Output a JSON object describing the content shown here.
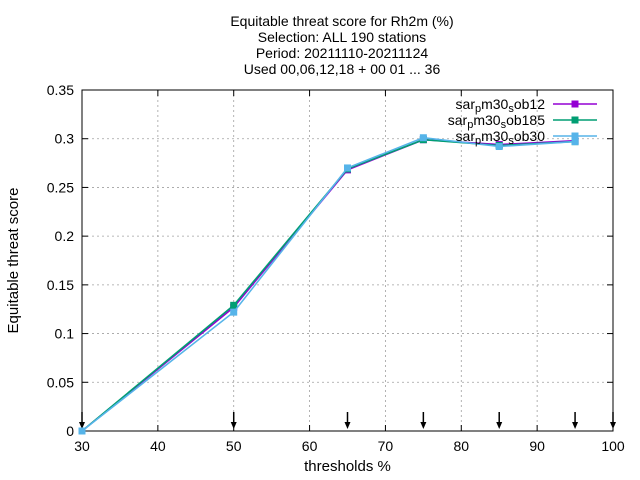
{
  "chart_data": {
    "type": "line",
    "title": [
      "Equitable threat score  for Rh2m (%)",
      "Selection: ALL    190 stations",
      "Period: 20211110-20211124",
      "Used 00,06,12,18 + 00 01 ... 36"
    ],
    "xlabel": "thresholds %",
    "ylabel": "Equitable threat score",
    "xlim": [
      30,
      100
    ],
    "ylim": [
      0,
      0.35
    ],
    "xticks": [
      30,
      40,
      50,
      60,
      70,
      80,
      90,
      100
    ],
    "yticks": [
      0,
      0.05,
      0.1,
      0.15,
      0.2,
      0.25,
      0.3,
      0.35
    ],
    "xtick_labels": [
      "30",
      "40",
      "50",
      "60",
      "70",
      "80",
      "90",
      "100"
    ],
    "ytick_labels": [
      "0",
      "0.05",
      "0.1",
      "0.15",
      "0.2",
      "0.25",
      "0.3",
      "0.35"
    ],
    "grid": true,
    "legend_position": "top-right",
    "arrow_markers_x": [
      30,
      50,
      65,
      75,
      85,
      95,
      100
    ],
    "series": [
      {
        "name": "sarpm30sob12",
        "name_parts": [
          "sar",
          "p",
          "m30",
          "s",
          "ob12"
        ],
        "color": "#9400d3",
        "marker": "square",
        "x": [
          30,
          50,
          65,
          75,
          85,
          95
        ],
        "y": [
          0.0,
          0.127,
          0.268,
          0.299,
          0.294,
          0.298
        ]
      },
      {
        "name": "sarpm30sob185",
        "name_parts": [
          "sar",
          "p",
          "m30",
          "s",
          "ob185"
        ],
        "color": "#009e73",
        "marker": "square",
        "x": [
          30,
          50,
          65,
          75,
          85,
          95
        ],
        "y": [
          0.0,
          0.129,
          0.269,
          0.299,
          0.293,
          0.297
        ]
      },
      {
        "name": "sarpm30sob30",
        "name_parts": [
          "sar",
          "p",
          "m30",
          "s",
          "ob30"
        ],
        "color": "#56b4e9",
        "marker": "square",
        "x": [
          30,
          50,
          65,
          75,
          85,
          95
        ],
        "y": [
          0.0,
          0.122,
          0.27,
          0.301,
          0.292,
          0.297
        ]
      }
    ]
  }
}
